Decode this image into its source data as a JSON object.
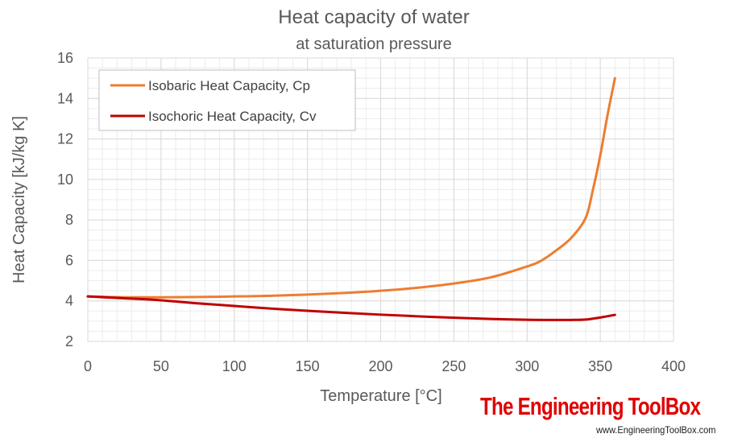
{
  "chart_data": {
    "type": "line",
    "title": "Heat capacity of water",
    "subtitle": "at saturation pressure",
    "xlabel": "Temperature [°C]",
    "ylabel": "Heat Capacity [kJ/kg K]",
    "xlim": [
      0,
      400
    ],
    "ylim": [
      2,
      16
    ],
    "x_ticks": [
      0,
      50,
      100,
      150,
      200,
      250,
      300,
      350,
      400
    ],
    "y_ticks": [
      2,
      4,
      6,
      8,
      10,
      12,
      14,
      16
    ],
    "grid": true,
    "legend_position": "top-left",
    "series": [
      {
        "name": "Isobaric Heat Capacity, Cp",
        "color": "#ED7D31",
        "x": [
          0,
          25,
          50,
          75,
          100,
          125,
          150,
          175,
          200,
          225,
          250,
          275,
          300,
          310,
          320,
          330,
          340,
          345,
          350,
          355,
          360
        ],
        "y": [
          4.22,
          4.18,
          4.18,
          4.19,
          4.22,
          4.25,
          4.31,
          4.39,
          4.5,
          4.65,
          4.86,
          5.16,
          5.7,
          6.0,
          6.5,
          7.1,
          8.1,
          9.5,
          11.2,
          13.2,
          15.0
        ]
      },
      {
        "name": "Isochoric Heat Capacity, Cv",
        "color": "#C00000",
        "x": [
          0,
          25,
          50,
          75,
          100,
          125,
          150,
          175,
          200,
          225,
          250,
          275,
          300,
          320,
          330,
          340,
          350,
          360
        ],
        "y": [
          4.22,
          4.13,
          4.03,
          3.88,
          3.75,
          3.62,
          3.51,
          3.41,
          3.32,
          3.24,
          3.17,
          3.11,
          3.07,
          3.06,
          3.06,
          3.08,
          3.18,
          3.31
        ]
      }
    ]
  },
  "brand": {
    "name": "The Engineering ToolBox",
    "url": "www.EngineeringToolBox.com"
  }
}
